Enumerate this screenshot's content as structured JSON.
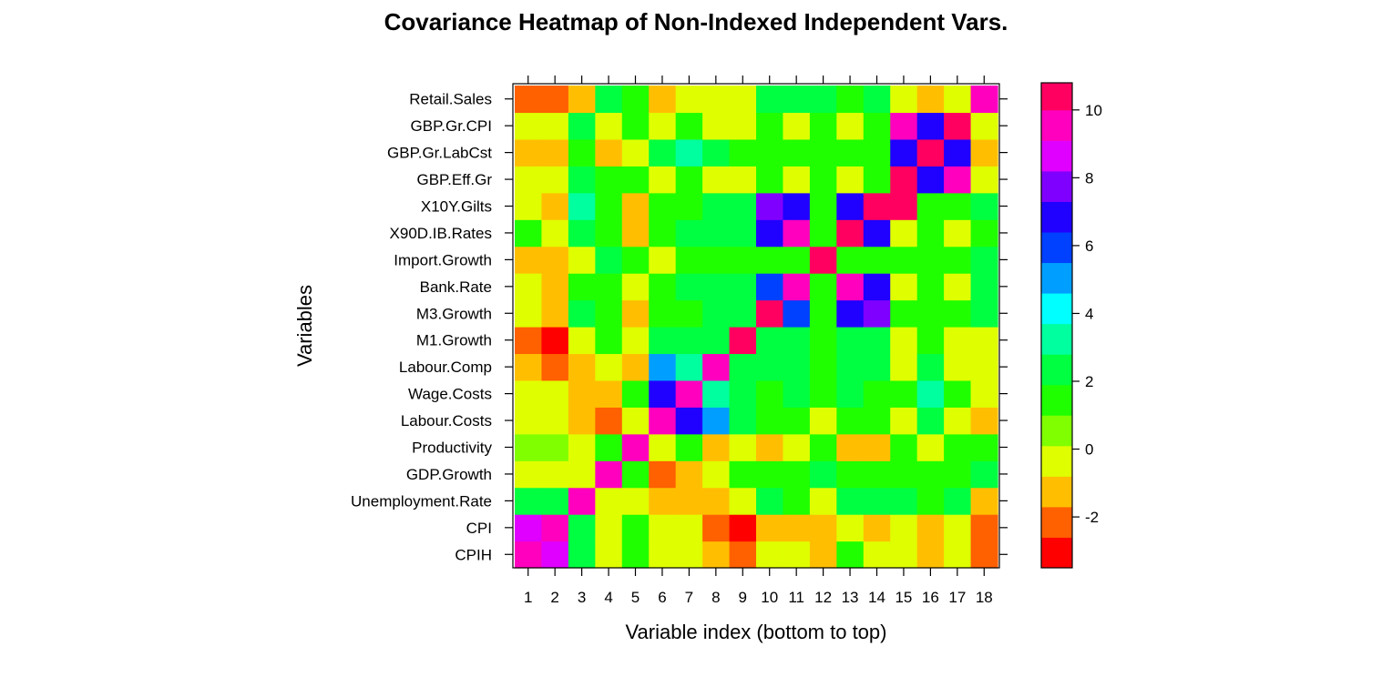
{
  "chart_data": {
    "type": "heatmap",
    "title": "Covariance Heatmap of Non-Indexed Independent Vars.",
    "xlabel": "Variable index (bottom to top)",
    "ylabel": "Variables",
    "x": [
      "1",
      "2",
      "3",
      "4",
      "5",
      "6",
      "7",
      "8",
      "9",
      "10",
      "11",
      "12",
      "13",
      "14",
      "15",
      "16",
      "17",
      "18"
    ],
    "y": [
      "CPIH",
      "CPI",
      "Unemployment.Rate",
      "GDP.Growth",
      "Productivity",
      "Labour.Costs",
      "Wage.Costs",
      "Labour.Comp",
      "M1.Growth",
      "M3.Growth",
      "Bank.Rate",
      "Import.Growth",
      "X90D.IB.Rates",
      "X10Y.Gilts",
      "GBP.Eff.Gr",
      "GBP.Gr.LabCst",
      "GBP.Gr.CPI",
      "Retail.Sales"
    ],
    "values": [
      [
        9.5,
        9.0,
        2.5,
        0,
        0.5,
        0,
        0,
        -1.5,
        -2.5,
        0,
        0,
        -1.5,
        1,
        0,
        0,
        -1.5,
        0,
        -2.5
      ],
      [
        9.0,
        9.5,
        2.5,
        0,
        0.5,
        0,
        0,
        -2.5,
        -3.0,
        -1.5,
        -1.5,
        -1.5,
        0,
        -1.5,
        0,
        -1.5,
        0,
        -2.5
      ],
      [
        2.5,
        2.5,
        9.5,
        0,
        0,
        -1.5,
        -1.5,
        -1.5,
        0,
        2.5,
        1,
        0,
        2,
        3,
        2,
        1,
        2,
        -1.5
      ],
      [
        0,
        0,
        0,
        9.5,
        1,
        -2.5,
        -1.5,
        0,
        1,
        1,
        1,
        2,
        1,
        1,
        1,
        -1.5,
        0,
        2
      ],
      [
        1,
        1,
        0,
        1,
        9.5,
        0,
        1,
        -1.5,
        0,
        -1.5,
        0,
        1,
        -1.5,
        -1.5,
        1,
        0,
        1,
        1
      ],
      [
        0,
        0,
        -1.5,
        -2.5,
        0,
        9.5,
        7,
        5,
        2,
        1,
        1,
        0,
        1,
        1,
        0,
        2.5,
        0,
        -1.5
      ],
      [
        0,
        0,
        -1.5,
        -1.5,
        1,
        7,
        9.5,
        3,
        2,
        1,
        2,
        1,
        2,
        1,
        1,
        3,
        1,
        0
      ],
      [
        -1.5,
        -2.5,
        -1.5,
        0,
        -1.5,
        5,
        3,
        9.5,
        2,
        2,
        2,
        1,
        2,
        2,
        0,
        2.5,
        0,
        0
      ],
      [
        -2.5,
        -3.0,
        0,
        1,
        0,
        2,
        2,
        2,
        10.5,
        2,
        2,
        1,
        2,
        2,
        0,
        1,
        0,
        0
      ],
      [
        0,
        -1.5,
        2.5,
        1,
        -1.5,
        1,
        1,
        2,
        2,
        10.5,
        6,
        1,
        7,
        8,
        1,
        1,
        1,
        2
      ],
      [
        0,
        -1.5,
        1,
        1,
        0,
        1,
        2,
        2,
        2,
        6,
        9.5,
        1,
        9.5,
        7,
        0,
        1,
        0,
        2
      ],
      [
        -1.5,
        -1.5,
        0,
        2,
        1,
        0,
        1,
        1,
        1,
        1,
        1,
        10.5,
        1,
        1,
        1,
        1,
        1,
        2
      ],
      [
        1,
        0,
        2,
        1,
        -1.5,
        1,
        2,
        2,
        2,
        7,
        9.5,
        1,
        10.5,
        7,
        0,
        1,
        0,
        1
      ],
      [
        0,
        -1.5,
        2.5,
        1,
        -1.5,
        1,
        1,
        2,
        2,
        8,
        7,
        1,
        7,
        10.5,
        1,
        1,
        1,
        2
      ],
      [
        0,
        0,
        2,
        1,
        1,
        0,
        1,
        0,
        0,
        1,
        0,
        1,
        0,
        10.5,
        10.5,
        7,
        9.5,
        0
      ],
      [
        -1.5,
        -1.5,
        1,
        1,
        0,
        2.5,
        3,
        2.5,
        1,
        1,
        1,
        1,
        1,
        1,
        7,
        10.5,
        7,
        -1.5
      ],
      [
        0,
        0,
        2,
        1,
        1,
        0,
        1,
        0,
        0,
        1,
        0,
        1,
        0,
        1,
        9.5,
        7,
        10.5,
        0
      ],
      [
        -2.5,
        -2.5,
        -1.5,
        2,
        1,
        -1.5,
        0,
        0,
        0,
        2,
        2,
        2,
        1,
        2,
        0,
        -1.5,
        0,
        9.5
      ]
    ],
    "zlim": [
      -3.5,
      10.8
    ],
    "colorbar": {
      "breaks": [
        -3.5,
        -2.6,
        -1.7,
        -0.8,
        0.1,
        1.0,
        1.9,
        2.8,
        3.7,
        4.6,
        5.5,
        6.4,
        7.3,
        8.2,
        9.1,
        10.0,
        10.8
      ],
      "colors": [
        "#FF0000",
        "#FF6000",
        "#FFBF00",
        "#DFFF00",
        "#80FF00",
        "#20FF00",
        "#00FF40",
        "#00FF9F",
        "#00FFFF",
        "#009FFF",
        "#0040FF",
        "#2000FF",
        "#8000FF",
        "#DF00FF",
        "#FF00BF",
        "#FF0060"
      ],
      "ticks": [
        -2,
        0,
        2,
        4,
        6,
        8,
        10
      ]
    },
    "grid": false,
    "legend_position": "right"
  }
}
